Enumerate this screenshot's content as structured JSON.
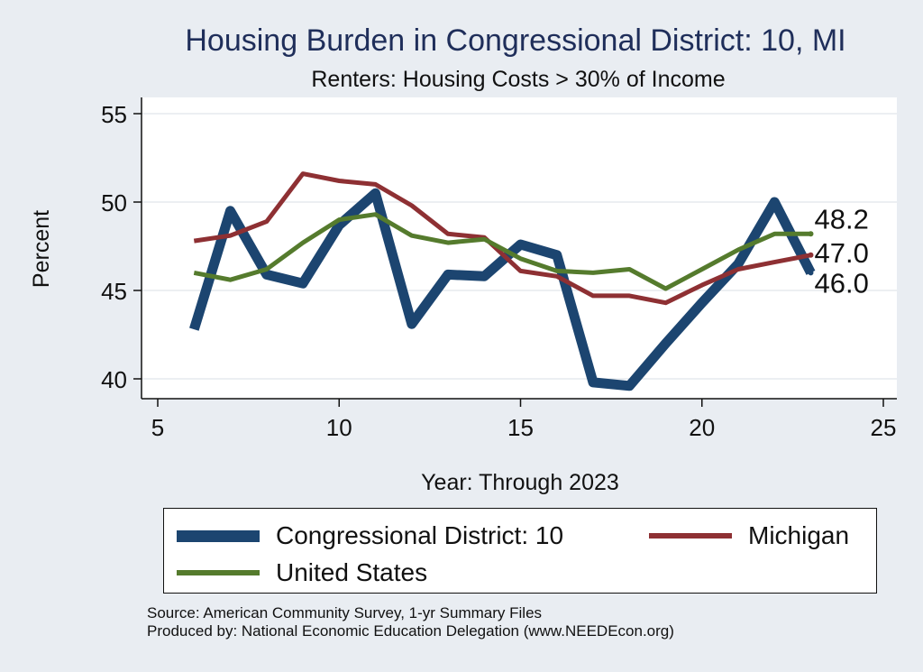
{
  "title": "Housing Burden in Congressional District:  10, MI",
  "subtitle": "Renters: Housing Costs > 30% of Income",
  "source": "Source: American Community Survey, 1-yr Summary Files",
  "produced_by": "Produced by: National Economic Education Delegation (www.NEEDEcon.org)",
  "colors": {
    "district": "#1c4570",
    "michigan": "#8e3033",
    "us": "#557b2d",
    "background": "#e9edf2",
    "plot_bg": "#ffffff",
    "title": "#1f2e5a"
  },
  "chart_data": {
    "type": "line",
    "title": "Housing Burden in Congressional District:  10, MI",
    "subtitle": "Renters: Housing Costs > 30% of Income",
    "xlabel": "Year: Through 2023",
    "ylabel": "Percent",
    "xlim": [
      5,
      25
    ],
    "ylim": [
      39,
      55.5
    ],
    "xticks": [
      5,
      10,
      15,
      20,
      25
    ],
    "yticks": [
      40,
      45,
      50,
      55
    ],
    "grid": true,
    "legend_position": "bottom",
    "series": [
      {
        "name": "Congressional District:  10",
        "color": "#1c4570",
        "x": [
          6,
          7,
          8,
          9,
          10,
          11,
          12,
          13,
          14,
          15,
          16,
          17,
          18,
          19,
          20,
          21,
          22,
          23
        ],
        "values": [
          42.8,
          49.5,
          45.9,
          45.4,
          48.7,
          50.5,
          43.1,
          45.9,
          45.8,
          47.6,
          47.0,
          39.8,
          39.6,
          42.0,
          44.3,
          46.5,
          50.0,
          46.0
        ],
        "end_label": "46.0"
      },
      {
        "name": "Michigan",
        "color": "#8e3033",
        "x": [
          6,
          7,
          8,
          9,
          10,
          11,
          12,
          13,
          14,
          15,
          16,
          17,
          18,
          19,
          20,
          21,
          22,
          23
        ],
        "values": [
          47.8,
          48.1,
          48.9,
          51.6,
          51.2,
          51.0,
          49.8,
          48.2,
          48.0,
          46.1,
          45.8,
          44.7,
          44.7,
          44.3,
          45.3,
          46.2,
          46.6,
          47.0
        ],
        "end_label": "47.0"
      },
      {
        "name": "United States",
        "color": "#557b2d",
        "x": [
          6,
          7,
          8,
          9,
          10,
          11,
          12,
          13,
          14,
          15,
          16,
          17,
          18,
          19,
          20,
          21,
          22,
          23
        ],
        "values": [
          46.0,
          45.6,
          46.2,
          47.7,
          49.0,
          49.3,
          48.1,
          47.7,
          47.9,
          46.8,
          46.1,
          46.0,
          46.2,
          45.1,
          46.2,
          47.3,
          48.2,
          48.2
        ],
        "end_label": "48.2"
      }
    ]
  }
}
